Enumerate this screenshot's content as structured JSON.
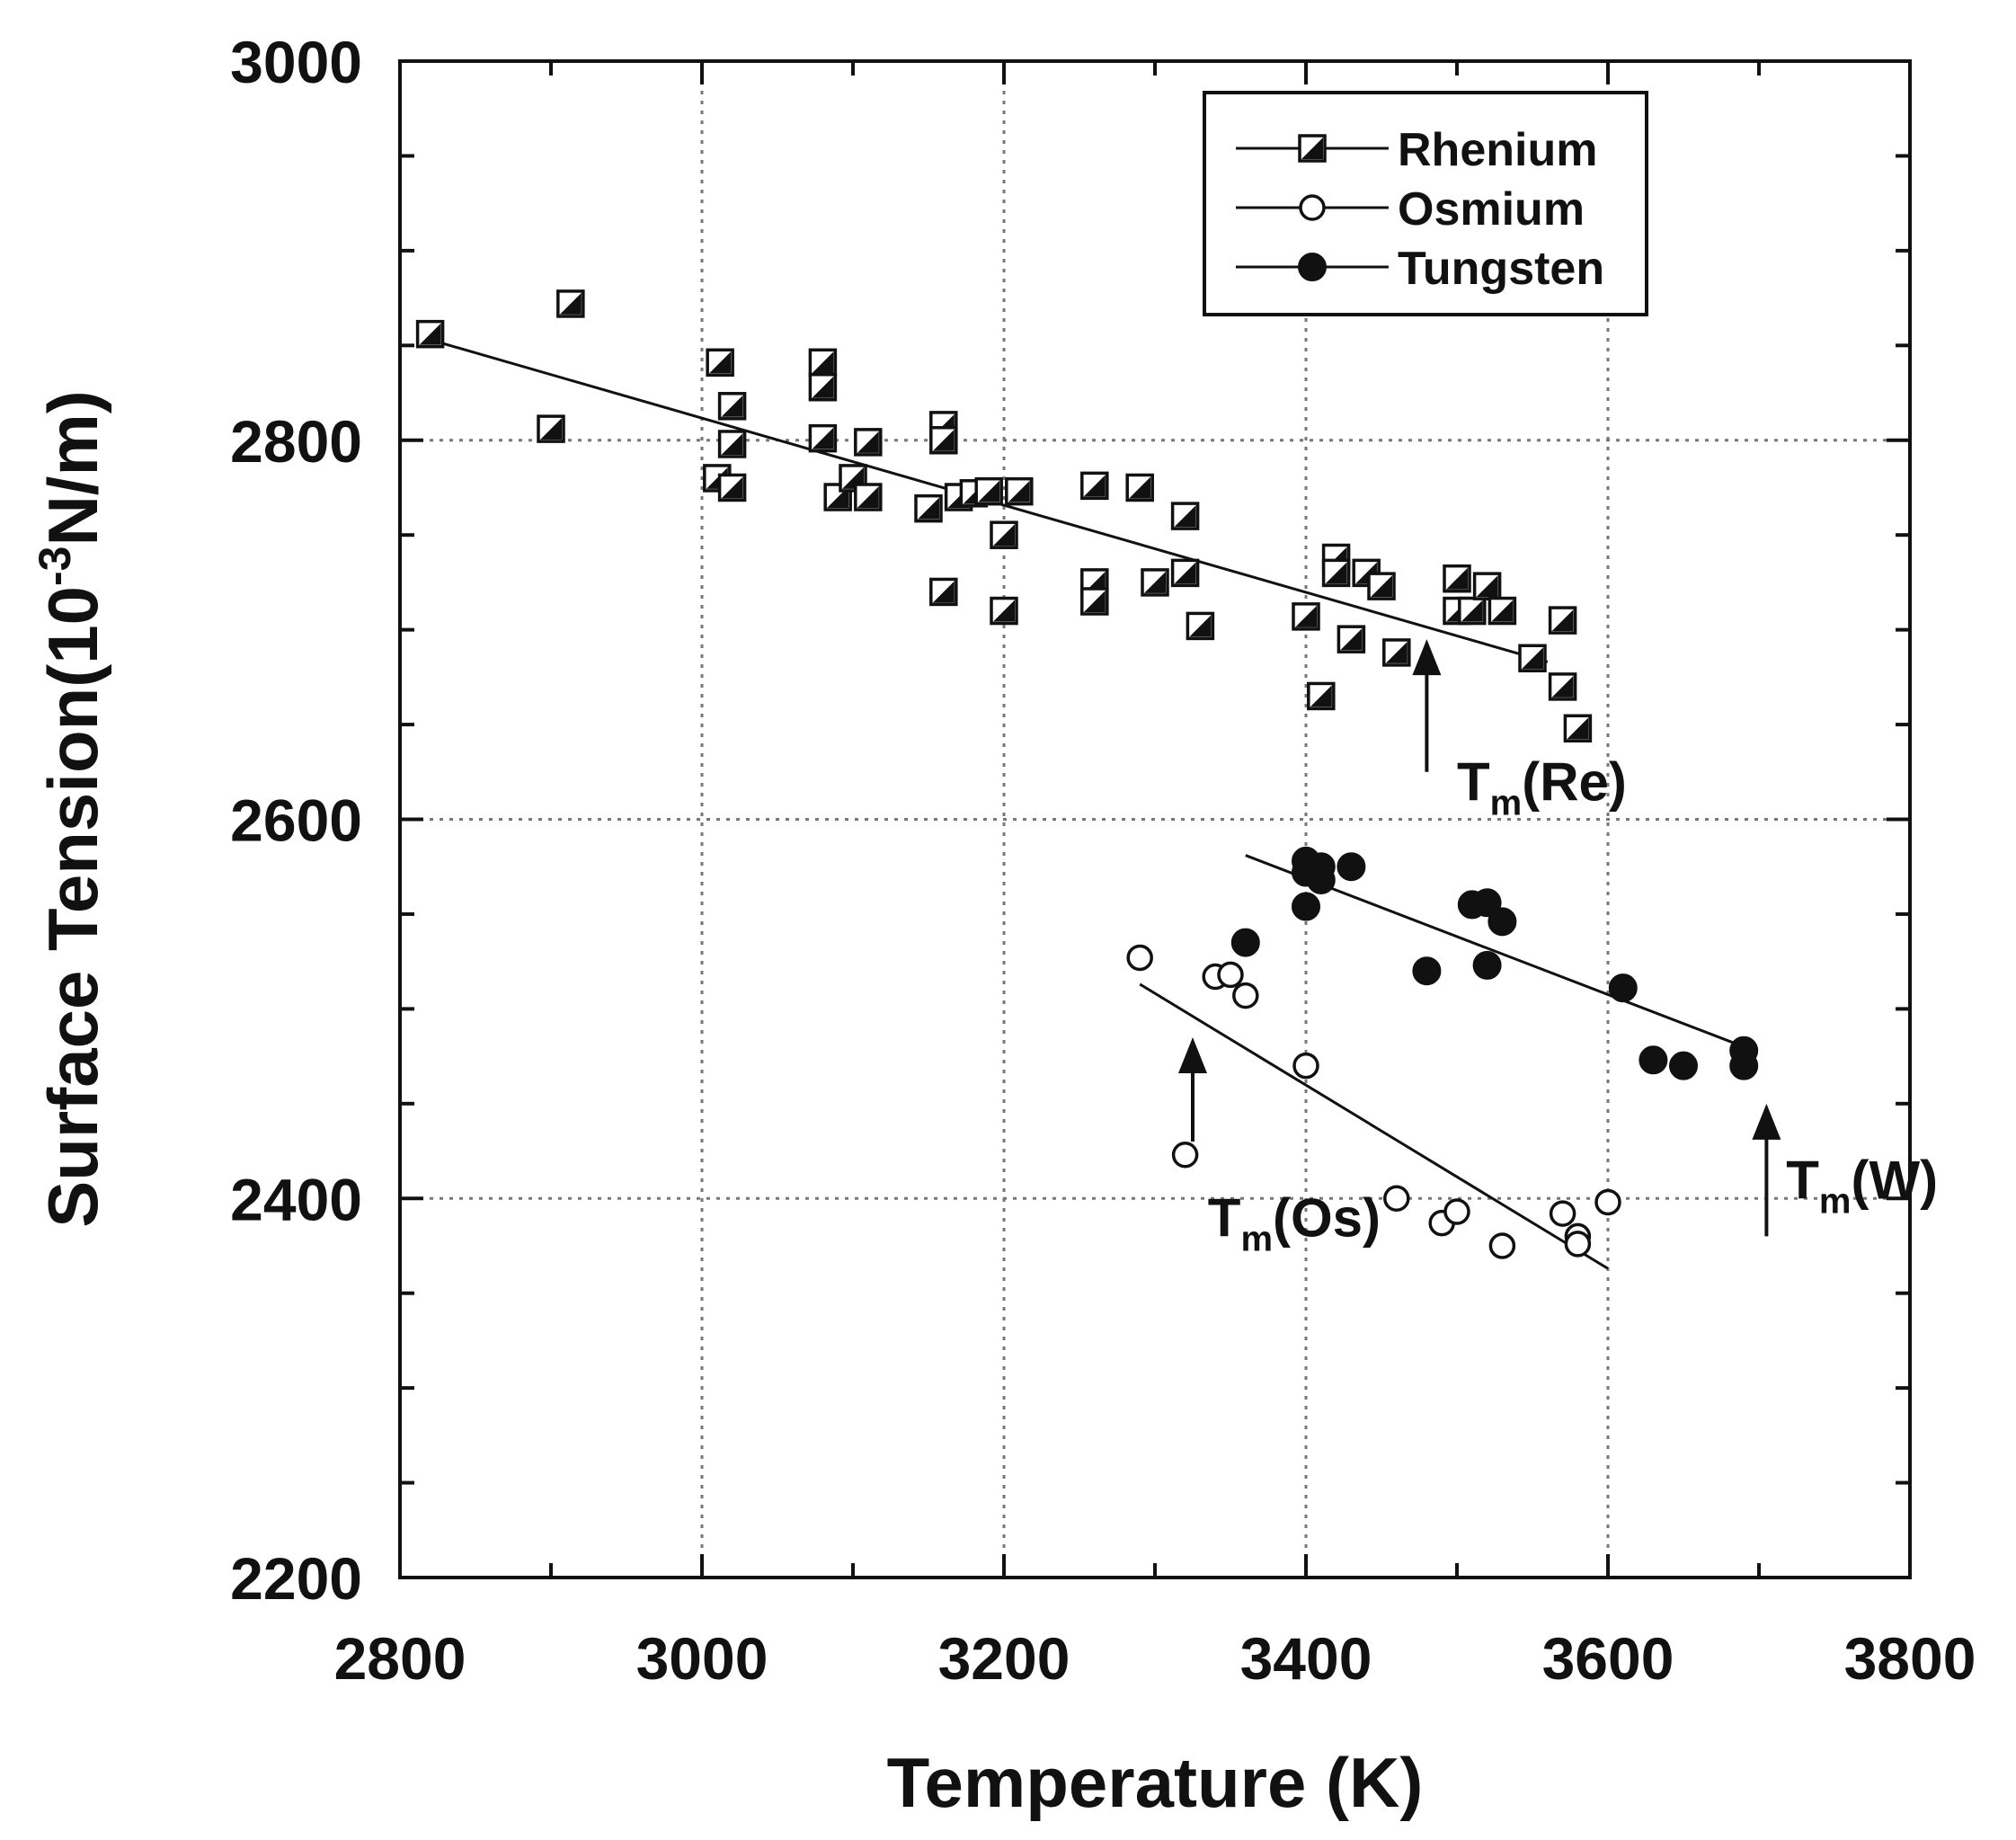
{
  "chart_data": {
    "type": "scatter",
    "title": "",
    "xlabel": "Temperature (K)",
    "ylabel": "Surface Tension(10",
    "ylabel_sup": "-3",
    "ylabel_tail": "N/m)",
    "xlim": [
      2800,
      3800
    ],
    "ylim": [
      2200,
      3000
    ],
    "xticks": [
      "2800",
      "3000",
      "3200",
      "3400",
      "3600",
      "3800"
    ],
    "yticks": [
      "2200",
      "2400",
      "2600",
      "2800",
      "3000"
    ],
    "grid": true,
    "legend_position": "top-right",
    "series": [
      {
        "name": "Rhenium",
        "marker": "half-filled-square",
        "points": [
          [
            2820,
            2856
          ],
          [
            2913,
            2872
          ],
          [
            2900,
            2806
          ],
          [
            3012,
            2841
          ],
          [
            3020,
            2818
          ],
          [
            3020,
            2798
          ],
          [
            3010,
            2780
          ],
          [
            3020,
            2775
          ],
          [
            3080,
            2841
          ],
          [
            3080,
            2828
          ],
          [
            3080,
            2801
          ],
          [
            3090,
            2770
          ],
          [
            3100,
            2780
          ],
          [
            3110,
            2799
          ],
          [
            3110,
            2770
          ],
          [
            3150,
            2764
          ],
          [
            3160,
            2808
          ],
          [
            3160,
            2800
          ],
          [
            3170,
            2770
          ],
          [
            3180,
            2772
          ],
          [
            3190,
            2773
          ],
          [
            3160,
            2720
          ],
          [
            3200,
            2750
          ],
          [
            3200,
            2710
          ],
          [
            3210,
            2773
          ],
          [
            3260,
            2776
          ],
          [
            3260,
            2725
          ],
          [
            3260,
            2715
          ],
          [
            3290,
            2775
          ],
          [
            3300,
            2725
          ],
          [
            3320,
            2760
          ],
          [
            3320,
            2730
          ],
          [
            3330,
            2702
          ],
          [
            3400,
            2707
          ],
          [
            3420,
            2738
          ],
          [
            3420,
            2730
          ],
          [
            3440,
            2730
          ],
          [
            3450,
            2723
          ],
          [
            3430,
            2695
          ],
          [
            3460,
            2688
          ],
          [
            3410,
            2665
          ],
          [
            3500,
            2727
          ],
          [
            3500,
            2710
          ],
          [
            3510,
            2710
          ],
          [
            3520,
            2723
          ],
          [
            3530,
            2710
          ],
          [
            3550,
            2685
          ],
          [
            3570,
            2705
          ],
          [
            3570,
            2670
          ],
          [
            3580,
            2648
          ]
        ],
        "fit": [
          [
            2820,
            2853
          ],
          [
            3560,
            2683
          ]
        ]
      },
      {
        "name": "Osmium",
        "marker": "open-circle",
        "points": [
          [
            3290,
            2527
          ],
          [
            3340,
            2517
          ],
          [
            3350,
            2518
          ],
          [
            3360,
            2507
          ],
          [
            3400,
            2470
          ],
          [
            3320,
            2423
          ],
          [
            3460,
            2400
          ],
          [
            3490,
            2387
          ],
          [
            3500,
            2393
          ],
          [
            3530,
            2375
          ],
          [
            3570,
            2392
          ],
          [
            3580,
            2380
          ],
          [
            3580,
            2376
          ],
          [
            3600,
            2398
          ]
        ],
        "fit": [
          [
            3290,
            2513
          ],
          [
            3600,
            2363
          ]
        ]
      },
      {
        "name": "Tungsten",
        "marker": "filled-circle",
        "points": [
          [
            3400,
            2578
          ],
          [
            3400,
            2572
          ],
          [
            3410,
            2575
          ],
          [
            3410,
            2568
          ],
          [
            3430,
            2575
          ],
          [
            3400,
            2554
          ],
          [
            3360,
            2535
          ],
          [
            3510,
            2555
          ],
          [
            3520,
            2556
          ],
          [
            3530,
            2546
          ],
          [
            3520,
            2523
          ],
          [
            3480,
            2520
          ],
          [
            3610,
            2511
          ],
          [
            3630,
            2473
          ],
          [
            3650,
            2470
          ],
          [
            3690,
            2478
          ],
          [
            3690,
            2470
          ]
        ],
        "fit": [
          [
            3360,
            2581
          ],
          [
            3690,
            2480
          ]
        ]
      }
    ],
    "annotations": [
      {
        "name": "tm-re",
        "base": "T",
        "sub": "m",
        "tail": "(Re)",
        "arrow_x": 3480,
        "arrow_from": 2625,
        "arrow_to": 2695,
        "label_x": 3500,
        "label_y": 2610
      },
      {
        "name": "tm-os",
        "base": "T",
        "sub": "m",
        "tail": "(Os)",
        "arrow_x": 3325,
        "arrow_from": 2430,
        "arrow_to": 2485,
        "label_x": 3335,
        "label_y": 2380
      },
      {
        "name": "tm-w",
        "base": "T",
        "sub": "m",
        "tail": "(W)",
        "arrow_x": 3705,
        "arrow_from": 2380,
        "arrow_to": 2450,
        "label_x": 3718,
        "label_y": 2400
      }
    ]
  }
}
